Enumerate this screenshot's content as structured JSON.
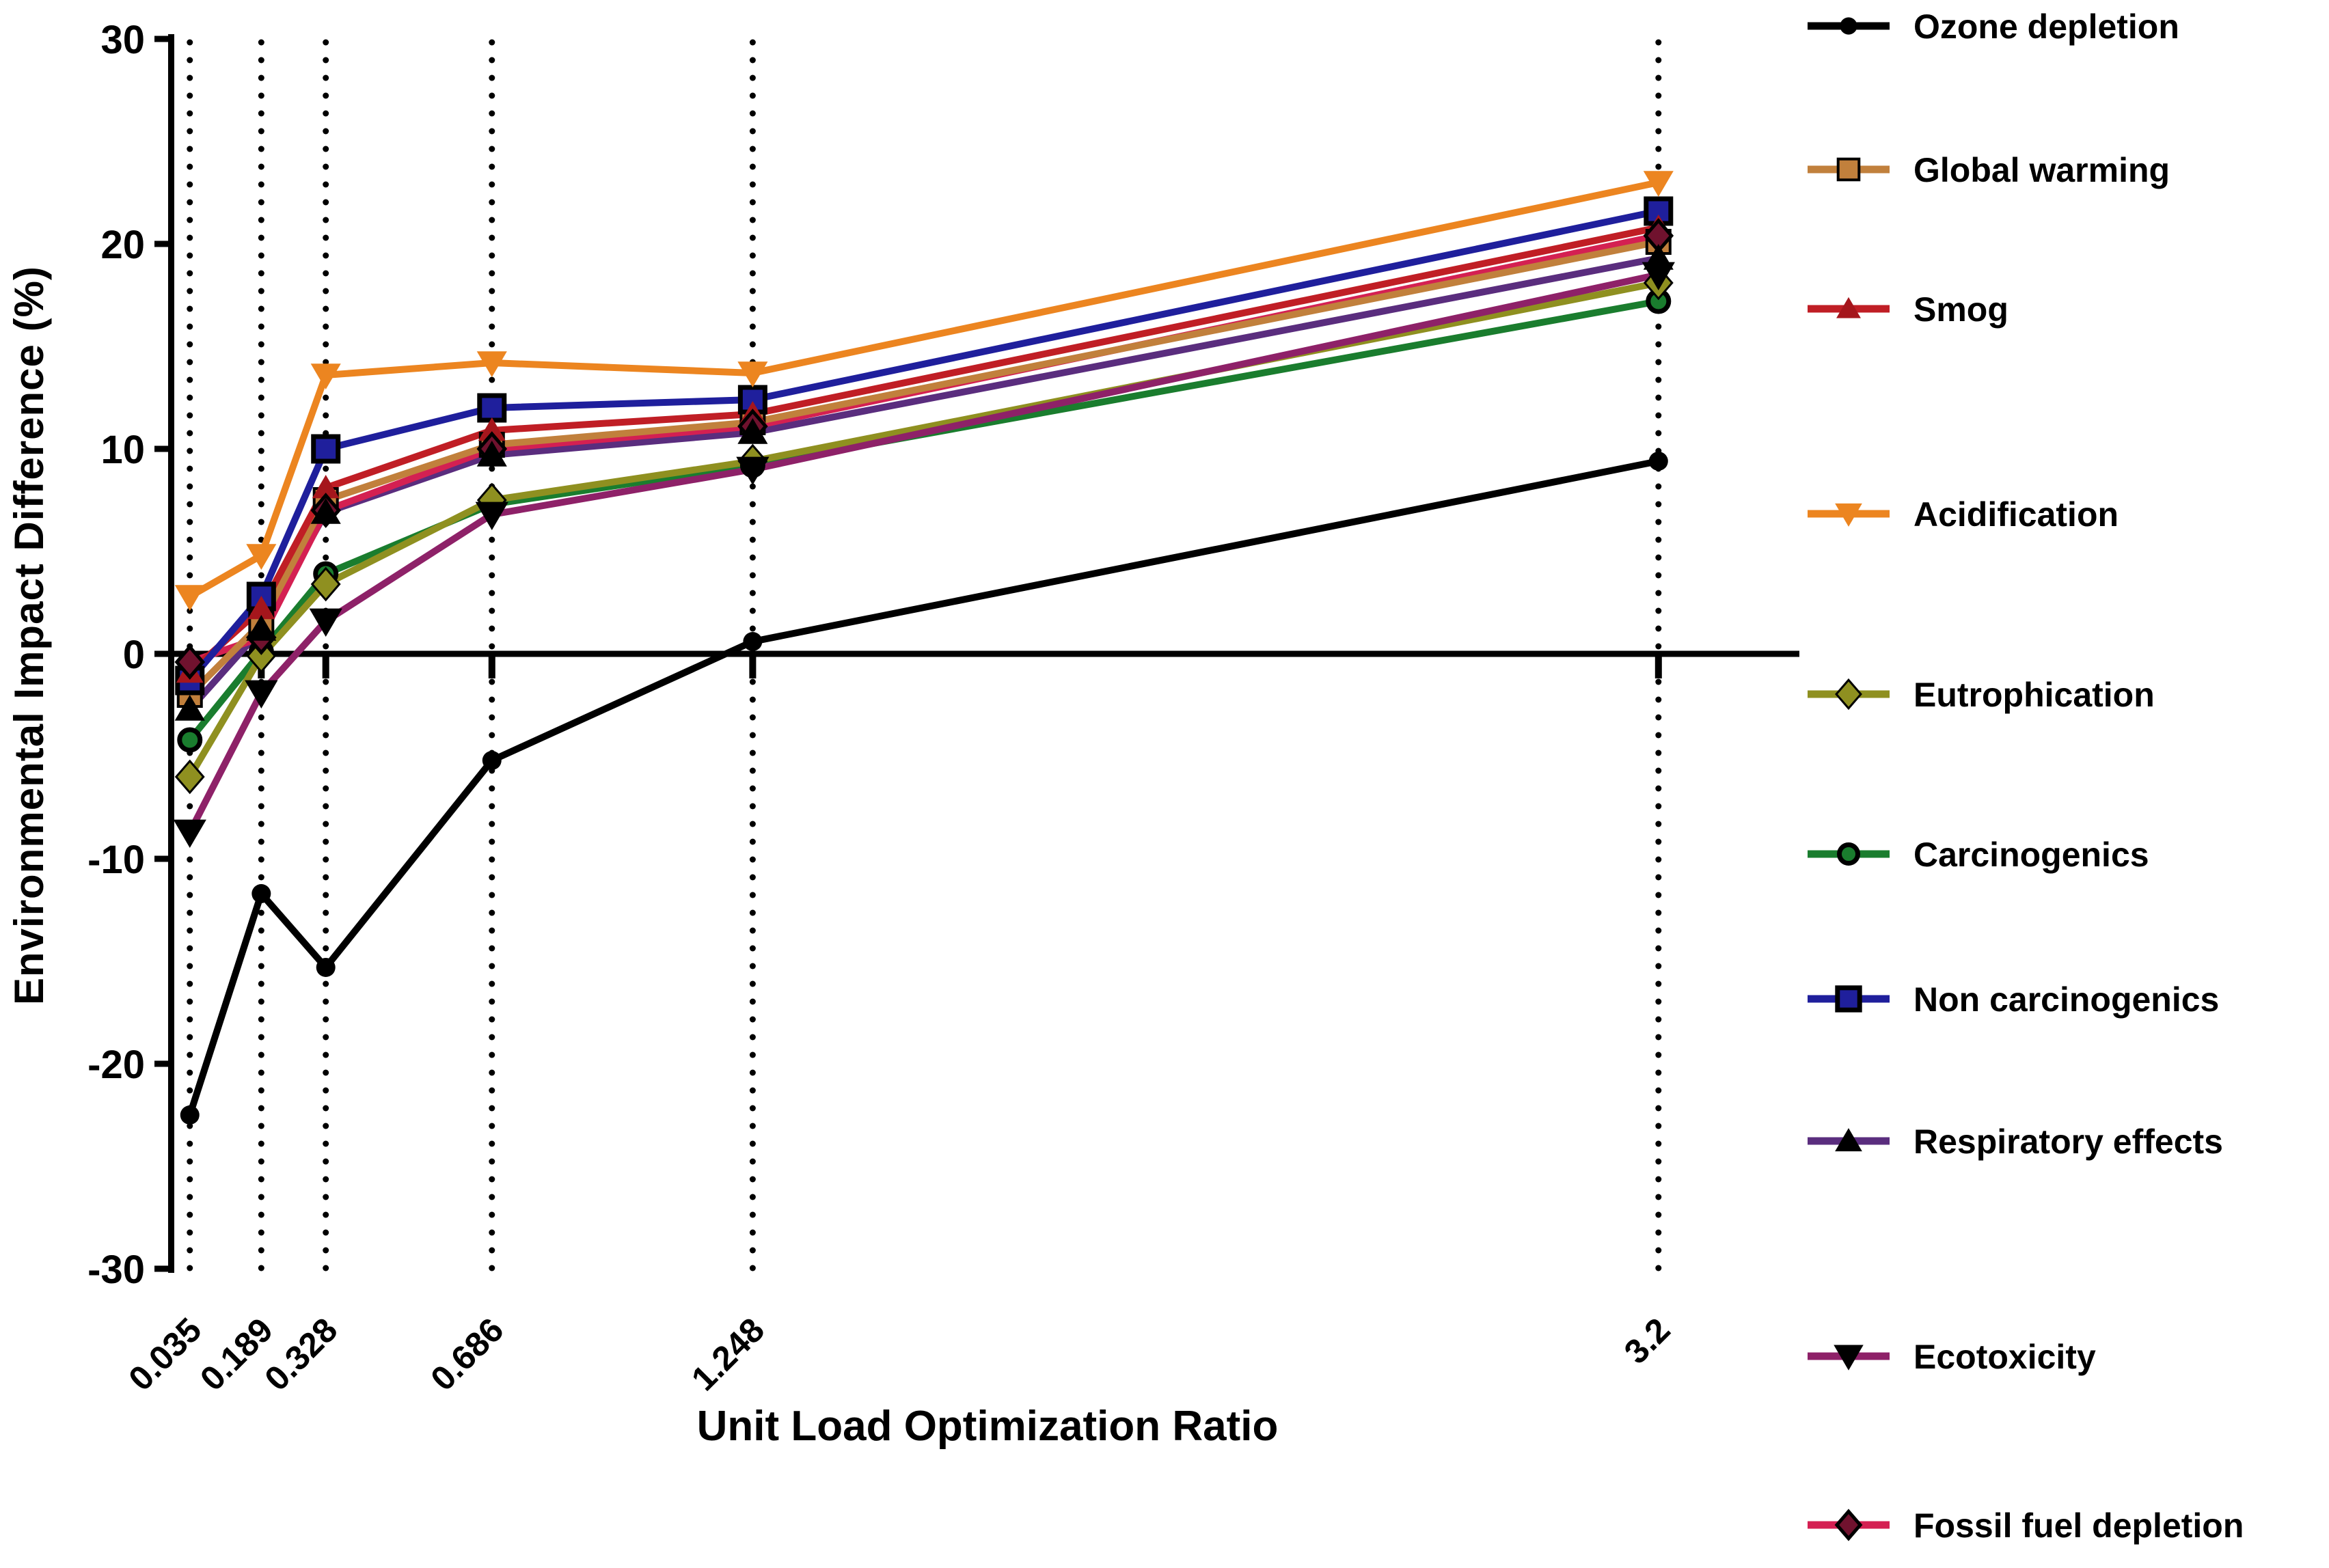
{
  "figure": {
    "y_axis_title": "Environmental Impact Difference (%)",
    "x_axis_title": "Unit Load Optimization Ratio"
  },
  "chart_data": {
    "type": "line",
    "title": "",
    "xlabel": "Unit Load Optimization Ratio",
    "ylabel": "Environmental Impact Difference (%)",
    "x": [
      0.035,
      0.189,
      0.328,
      0.686,
      1.248,
      3.2
    ],
    "x_tick_labels": [
      "0.035",
      "0.189",
      "0.328",
      "0.686",
      "1.248",
      "3.2"
    ],
    "y_ticks": [
      30,
      20,
      10,
      0,
      -10,
      -20,
      -30
    ],
    "ylim": [
      -30,
      30
    ],
    "grid": "dotted vertical lines at each x tick",
    "zero_line": true,
    "legend_position": "right",
    "series": [
      {
        "name": "Ozone depletion",
        "color": "#000000",
        "marker": "circle",
        "marker_fill": "#000000",
        "marker_stroke": "none",
        "marker_stroke_width": 0,
        "marker_size": 14,
        "values": [
          -22.5,
          -11.7,
          -15.3,
          -5.2,
          0.6,
          9.4
        ]
      },
      {
        "name": "Global warming",
        "color": "#C1803C",
        "marker": "square",
        "marker_fill": "#C1803C",
        "marker_stroke": "#000000",
        "marker_stroke_width": 4,
        "marker_size": 17,
        "values": [
          -2.0,
          1.5,
          7.5,
          10.2,
          11.3,
          20.1
        ]
      },
      {
        "name": "Smog",
        "color": "#C01E25",
        "marker": "triangle-up",
        "marker_fill": "#A5161C",
        "marker_stroke": "none",
        "marker_stroke_width": 0,
        "marker_size": 19,
        "values": [
          -0.9,
          2.2,
          8.1,
          10.9,
          11.7,
          20.8
        ]
      },
      {
        "name": "Acidification",
        "color": "#EC8520",
        "marker": "triangle-down",
        "marker_fill": "#EC8520",
        "marker_stroke": "none",
        "marker_stroke_width": 0,
        "marker_size": 21,
        "values": [
          2.8,
          4.8,
          13.6,
          14.2,
          13.7,
          23.0
        ]
      },
      {
        "name": "Eutrophication",
        "color": "#8F9020",
        "marker": "diamond",
        "marker_fill": "#8F9020",
        "marker_stroke": "#000000",
        "marker_stroke_width": 3,
        "marker_size": 21,
        "values": [
          -6.0,
          -0.1,
          3.4,
          7.5,
          9.4,
          18.1
        ]
      },
      {
        "name": "Carcinogenics",
        "color": "#1A7D2E",
        "marker": "circle",
        "marker_fill": "#1A7D2E",
        "marker_stroke": "#000000",
        "marker_stroke_width": 7,
        "marker_size": 15,
        "values": [
          -4.2,
          0.1,
          3.9,
          7.3,
          9.2,
          17.2
        ]
      },
      {
        "name": "Non carcinogenics",
        "color": "#1F1F9C",
        "marker": "square",
        "marker_fill": "#1F1F9C",
        "marker_stroke": "#000000",
        "marker_stroke_width": 7,
        "marker_size": 18,
        "values": [
          -1.3,
          2.8,
          10.0,
          12.0,
          12.4,
          21.6
        ]
      },
      {
        "name": "Respiratory effects",
        "color": "#5A2D7E",
        "marker": "triangle-up",
        "marker_fill": "#000000",
        "marker_stroke": "none",
        "marker_stroke_width": 0,
        "marker_size": 21,
        "values": [
          -2.7,
          1.2,
          6.9,
          9.7,
          10.8,
          19.3
        ]
      },
      {
        "name": "Ecotoxicity",
        "color": "#8E2168",
        "marker": "triangle-down",
        "marker_fill": "#000000",
        "marker_stroke": "none",
        "marker_stroke_width": 0,
        "marker_size": 23,
        "values": [
          -8.7,
          -1.9,
          1.6,
          6.8,
          9.0,
          18.5
        ]
      },
      {
        "name": "Fossil fuel depletion",
        "color": "#D42052",
        "marker": "diamond",
        "marker_fill": "#70122E",
        "marker_stroke": "#000000",
        "marker_stroke_width": 5,
        "marker_size": 20,
        "values": [
          -0.4,
          0.8,
          7.0,
          10.0,
          11.1,
          20.4
        ]
      }
    ]
  }
}
